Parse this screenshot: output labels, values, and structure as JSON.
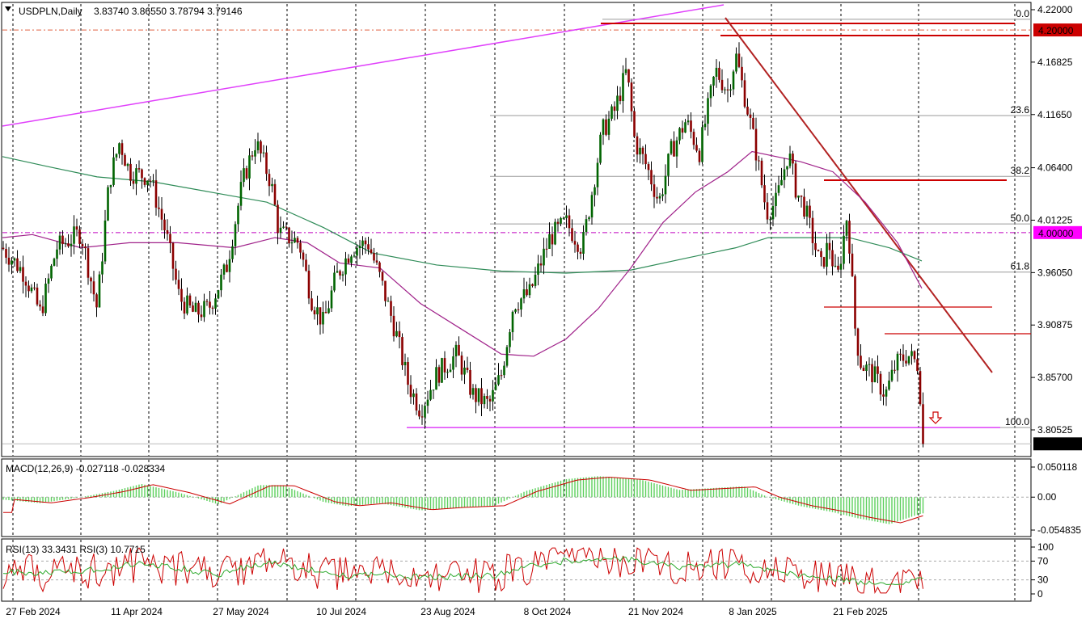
{
  "header": {
    "symbol_label": "USDPLN,Daily",
    "ohlc": "3.83740 3.86550 3.78794 3.79146"
  },
  "macd_label": "MACD(12,26,9) -0.027118 -0.028334",
  "rsi_label": "RSI(13) 33.3431  RSI(3) 10.7715",
  "colors": {
    "up_body": "#006400",
    "down_body": "#8b0000",
    "ma_green": "#2e8b57",
    "ma_purple": "#a0228a",
    "trend_red": "#b22222",
    "level_red": "#cc0000",
    "magenta": "#e040fb",
    "macd_hist": "#5ccf5c",
    "price_box": "#cc0000",
    "level_box": "#ff00ff"
  },
  "chart_data": [
    {
      "type": "candlestick",
      "title": "USDPLN,Daily",
      "y_ticks": [
        "4.22000",
        "4.16825",
        "4.11650",
        "4.06400",
        "4.01225",
        "3.96050",
        "3.90875",
        "3.85700",
        "3.80525"
      ],
      "y_range": [
        3.7835,
        4.224
      ],
      "x_ticks": [
        "27 Feb 2024",
        "11 Apr 2024",
        "27 May 2024",
        "10 Jul 2024",
        "23 Aug 2024",
        "8 Oct 2024",
        "21 Nov 2024",
        "8 Jan 2025",
        "21 Feb 2025"
      ],
      "fib_levels": [
        {
          "label": "0.0",
          "value": 4.2105
        },
        {
          "label": "23.6",
          "value": 4.1155
        },
        {
          "label": "38.2",
          "value": 4.0555
        },
        {
          "label": "50.0",
          "value": 4.0085
        },
        {
          "label": "61.8",
          "value": 3.961
        },
        {
          "label": "100.0",
          "value": 3.8075
        }
      ],
      "price_boxes": [
        {
          "label": "4.20000",
          "value": 4.2
        },
        {
          "label": "4.00000",
          "value": 4.0
        },
        {
          "label": "3.79146",
          "value": 3.79146
        }
      ],
      "last_close": 3.79146
    },
    {
      "type": "bar",
      "title": "MACD(12,26,9) -0.027118 -0.028334",
      "y_ticks": [
        "0.050118",
        "0.00",
        "-0.054835"
      ]
    },
    {
      "type": "line",
      "title": "RSI(13) 33.3431  RSI(3) 10.7715",
      "y_ticks": [
        "100",
        "70",
        "30",
        "0"
      ]
    }
  ]
}
